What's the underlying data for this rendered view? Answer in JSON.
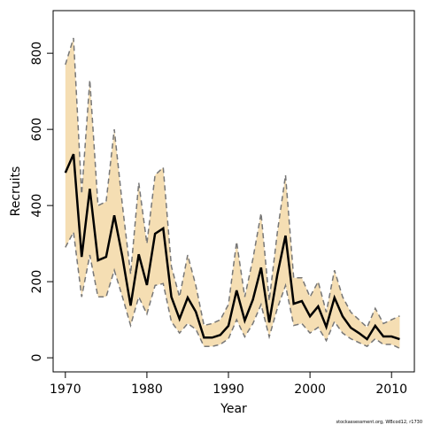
{
  "chart_data": {
    "type": "line",
    "xlabel": "Year",
    "ylabel": "Recruits",
    "footnote": "stockassessment.org, WBcod12, r1730",
    "x": [
      1970,
      1971,
      1972,
      1973,
      1974,
      1975,
      1976,
      1977,
      1978,
      1979,
      1980,
      1981,
      1982,
      1983,
      1984,
      1985,
      1986,
      1987,
      1988,
      1989,
      1990,
      1991,
      1992,
      1993,
      1994,
      1995,
      1996,
      1997,
      1998,
      1999,
      2000,
      2001,
      2002,
      2003,
      2004,
      2005,
      2006,
      2007,
      2008,
      2009,
      2010,
      2011
    ],
    "values": [
      486,
      535,
      265,
      444,
      256,
      265,
      374,
      265,
      137,
      272,
      191,
      326,
      340,
      160,
      102,
      158,
      121,
      53,
      53,
      60,
      84,
      177,
      98,
      153,
      237,
      93,
      219,
      321,
      142,
      149,
      109,
      135,
      81,
      158,
      109,
      79,
      65,
      49,
      84,
      56,
      56,
      49
    ],
    "upper": [
      770,
      840,
      430,
      730,
      400,
      410,
      600,
      400,
      220,
      460,
      300,
      480,
      500,
      240,
      160,
      270,
      190,
      85,
      90,
      100,
      140,
      305,
      160,
      260,
      380,
      150,
      330,
      480,
      210,
      210,
      160,
      200,
      120,
      230,
      160,
      120,
      100,
      80,
      130,
      90,
      100,
      110
    ],
    "lower": [
      290,
      330,
      160,
      270,
      160,
      160,
      230,
      160,
      85,
      160,
      115,
      190,
      195,
      95,
      65,
      90,
      75,
      30,
      30,
      35,
      50,
      100,
      55,
      90,
      140,
      55,
      130,
      190,
      85,
      90,
      65,
      80,
      45,
      95,
      65,
      50,
      40,
      30,
      50,
      35,
      35,
      25
    ],
    "color": "#000000",
    "ci_color": "#777777",
    "band_color": "#f5deb3",
    "xlim": [
      1968.5,
      2012.8
    ],
    "ylim": [
      -37,
      912
    ],
    "xticks": [
      1970,
      1980,
      1990,
      2000,
      2010
    ],
    "yticks": [
      0,
      200,
      400,
      600,
      800
    ]
  }
}
